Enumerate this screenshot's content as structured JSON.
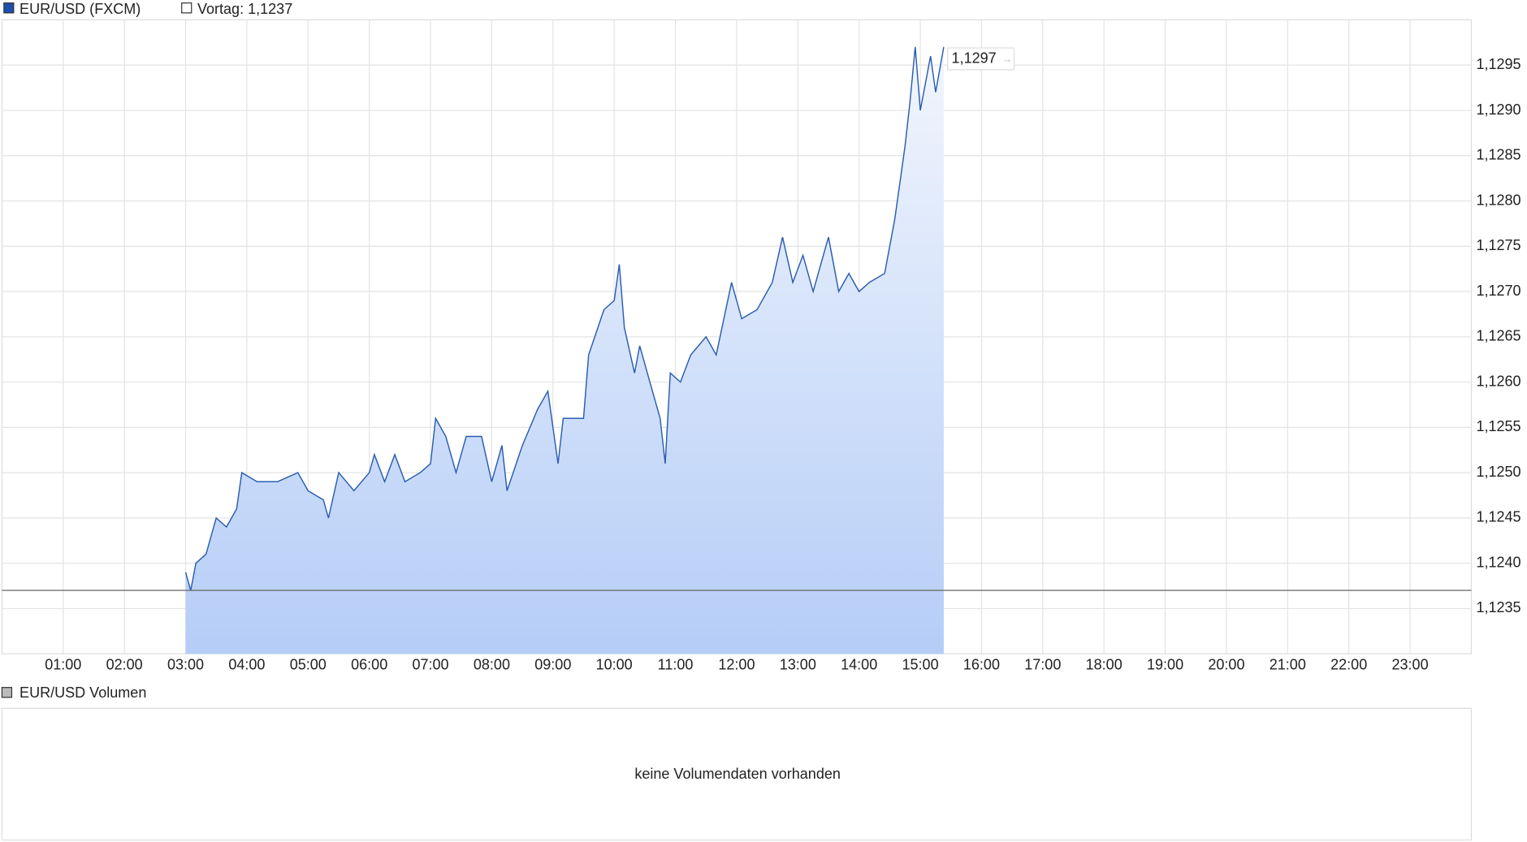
{
  "chart_data": {
    "type": "area",
    "series": [
      {
        "name": "EUR/USD (FXCM)",
        "color": "#2a5db0",
        "x": [
          3.0,
          3.083,
          3.167,
          3.333,
          3.5,
          3.667,
          3.833,
          3.917,
          4.167,
          4.5,
          4.833,
          5.0,
          5.25,
          5.333,
          5.5,
          5.75,
          6.0,
          6.083,
          6.25,
          6.417,
          6.583,
          6.833,
          7.0,
          7.083,
          7.25,
          7.417,
          7.583,
          7.833,
          8.0,
          8.167,
          8.25,
          8.5,
          8.75,
          8.917,
          9.083,
          9.167,
          9.5,
          9.583,
          9.833,
          10.0,
          10.083,
          10.167,
          10.333,
          10.417,
          10.583,
          10.75,
          10.833,
          10.917,
          11.083,
          11.25,
          11.5,
          11.667,
          11.917,
          12.083,
          12.333,
          12.583,
          12.75,
          12.917,
          13.083,
          13.25,
          13.5,
          13.667,
          13.833,
          14.0,
          14.167,
          14.417,
          14.583,
          14.75,
          14.833,
          14.917,
          15.0,
          15.167,
          15.25,
          15.383
        ],
        "values": [
          1.1239,
          1.1237,
          1.124,
          1.1241,
          1.1245,
          1.1244,
          1.1246,
          1.125,
          1.1249,
          1.1249,
          1.125,
          1.1248,
          1.1247,
          1.1245,
          1.125,
          1.1248,
          1.125,
          1.1252,
          1.1249,
          1.1252,
          1.1249,
          1.125,
          1.1251,
          1.1256,
          1.1254,
          1.125,
          1.1254,
          1.1254,
          1.1249,
          1.1253,
          1.1248,
          1.1253,
          1.1257,
          1.1259,
          1.1251,
          1.1256,
          1.1256,
          1.1263,
          1.1268,
          1.1269,
          1.1273,
          1.1266,
          1.1261,
          1.1264,
          1.126,
          1.1256,
          1.1251,
          1.1261,
          1.126,
          1.1263,
          1.1265,
          1.1263,
          1.1271,
          1.1267,
          1.1268,
          1.1271,
          1.1276,
          1.1271,
          1.1274,
          1.127,
          1.1276,
          1.127,
          1.1272,
          1.127,
          1.1271,
          1.1272,
          1.1278,
          1.1286,
          1.1291,
          1.1297,
          1.129,
          1.1296,
          1.1292,
          1.1297
        ]
      }
    ],
    "last_label": "1,1297",
    "reference": {
      "value": 1.1237,
      "label": "Vortag: 1,1237"
    },
    "xlim": [
      0,
      24
    ],
    "xticks": [
      {
        "value": 1,
        "label": "01:00"
      },
      {
        "value": 2,
        "label": "02:00"
      },
      {
        "value": 3,
        "label": "03:00"
      },
      {
        "value": 4,
        "label": "04:00"
      },
      {
        "value": 5,
        "label": "05:00"
      },
      {
        "value": 6,
        "label": "06:00"
      },
      {
        "value": 7,
        "label": "07:00"
      },
      {
        "value": 8,
        "label": "08:00"
      },
      {
        "value": 9,
        "label": "09:00"
      },
      {
        "value": 10,
        "label": "10:00"
      },
      {
        "value": 11,
        "label": "11:00"
      },
      {
        "value": 12,
        "label": "12:00"
      },
      {
        "value": 13,
        "label": "13:00"
      },
      {
        "value": 14,
        "label": "14:00"
      },
      {
        "value": 15,
        "label": "15:00"
      },
      {
        "value": 16,
        "label": "16:00"
      },
      {
        "value": 17,
        "label": "17:00"
      },
      {
        "value": 18,
        "label": "18:00"
      },
      {
        "value": 19,
        "label": "19:00"
      },
      {
        "value": 20,
        "label": "20:00"
      },
      {
        "value": 21,
        "label": "21:00"
      },
      {
        "value": 22,
        "label": "22:00"
      },
      {
        "value": 23,
        "label": "23:00"
      }
    ],
    "ylim": [
      1.123,
      1.13
    ],
    "yticks": [
      {
        "value": 1.1235,
        "label": "1,1235"
      },
      {
        "value": 1.124,
        "label": "1,1240"
      },
      {
        "value": 1.1245,
        "label": "1,1245"
      },
      {
        "value": 1.125,
        "label": "1,1250"
      },
      {
        "value": 1.1255,
        "label": "1,1255"
      },
      {
        "value": 1.126,
        "label": "1,1260"
      },
      {
        "value": 1.1265,
        "label": "1,1265"
      },
      {
        "value": 1.127,
        "label": "1,1270"
      },
      {
        "value": 1.1275,
        "label": "1,1275"
      },
      {
        "value": 1.128,
        "label": "1,1280"
      },
      {
        "value": 1.1285,
        "label": "1,1285"
      },
      {
        "value": 1.129,
        "label": "1,1290"
      },
      {
        "value": 1.1295,
        "label": "1,1295"
      }
    ],
    "grid": true
  },
  "volume_panel": {
    "legend": "EUR/USD Volumen",
    "message": "keine Volumendaten vorhanden"
  }
}
